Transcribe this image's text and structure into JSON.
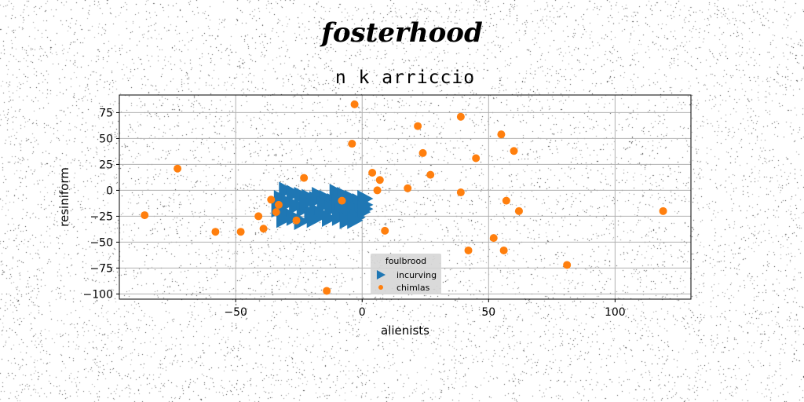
{
  "suptitle": "fosterhood",
  "chart_data": {
    "type": "scatter",
    "title": "n k arriccio",
    "xlabel": "alienists",
    "ylabel": "resiniform",
    "xlim": [
      -96,
      130
    ],
    "ylim": [
      -105,
      92
    ],
    "xticks": [
      -50,
      0,
      50,
      100
    ],
    "xtick_labels": [
      "−50",
      "0",
      "50",
      "100"
    ],
    "yticks": [
      75,
      50,
      25,
      0,
      -25,
      -50,
      -75,
      -100
    ],
    "ytick_labels": [
      "75",
      "50",
      "25",
      "0",
      "−25",
      "−50",
      "−75",
      "−100"
    ],
    "grid": true,
    "legend": {
      "title": "foulbrood",
      "position": "lower-center"
    },
    "series": [
      {
        "name": "incurving",
        "marker": "triangle-right",
        "color": "#1f77b4",
        "points": [
          [
            -30,
            0
          ],
          [
            -27,
            -3
          ],
          [
            -24,
            -5
          ],
          [
            -21,
            -7
          ],
          [
            -18,
            -9
          ],
          [
            -32,
            -8
          ],
          [
            -29,
            -12
          ],
          [
            -26,
            -15
          ],
          [
            -23,
            -18
          ],
          [
            -20,
            -22
          ],
          [
            -33,
            -18
          ],
          [
            -30,
            -22
          ],
          [
            -27,
            -26
          ],
          [
            -24,
            -30
          ],
          [
            -31,
            -28
          ],
          [
            -17,
            -5
          ],
          [
            -14,
            -8
          ],
          [
            -11,
            -11
          ],
          [
            -15,
            -14
          ],
          [
            -12,
            -18
          ],
          [
            -18,
            -20
          ],
          [
            -16,
            -24
          ],
          [
            -13,
            -27
          ],
          [
            -19,
            -28
          ],
          [
            -22,
            -12
          ],
          [
            -10,
            -2
          ],
          [
            -7,
            -5
          ],
          [
            -4,
            -8
          ],
          [
            -1,
            -11
          ],
          [
            1,
            -14
          ],
          [
            -9,
            -12
          ],
          [
            -6,
            -15
          ],
          [
            -3,
            -18
          ],
          [
            0,
            -21
          ],
          [
            -8,
            -20
          ],
          [
            -5,
            -23
          ],
          [
            -2,
            -26
          ],
          [
            -9,
            -26
          ],
          [
            -6,
            -29
          ],
          [
            -3,
            -29
          ],
          [
            1,
            -8
          ],
          [
            1,
            -18
          ]
        ]
      },
      {
        "name": "chimlas",
        "marker": "circle",
        "color": "#ff7f0e",
        "points": [
          [
            -3,
            83
          ],
          [
            39,
            71
          ],
          [
            22,
            62
          ],
          [
            55,
            54
          ],
          [
            -4,
            45
          ],
          [
            60,
            38
          ],
          [
            24,
            36
          ],
          [
            45,
            31
          ],
          [
            -73,
            21
          ],
          [
            4,
            17
          ],
          [
            27,
            15
          ],
          [
            -23,
            12
          ],
          [
            7,
            10
          ],
          [
            18,
            2
          ],
          [
            6,
            0
          ],
          [
            39,
            -2
          ],
          [
            -36,
            -9
          ],
          [
            -33,
            -14
          ],
          [
            -8,
            -10
          ],
          [
            57,
            -10
          ],
          [
            -86,
            -24
          ],
          [
            -41,
            -25
          ],
          [
            -34,
            -21
          ],
          [
            62,
            -20
          ],
          [
            119,
            -20
          ],
          [
            -26,
            -29
          ],
          [
            -39,
            -37
          ],
          [
            -48,
            -40
          ],
          [
            -58,
            -40
          ],
          [
            9,
            -39
          ],
          [
            52,
            -46
          ],
          [
            42,
            -58
          ],
          [
            56,
            -58
          ],
          [
            81,
            -72
          ],
          [
            -14,
            -97
          ]
        ]
      }
    ]
  }
}
